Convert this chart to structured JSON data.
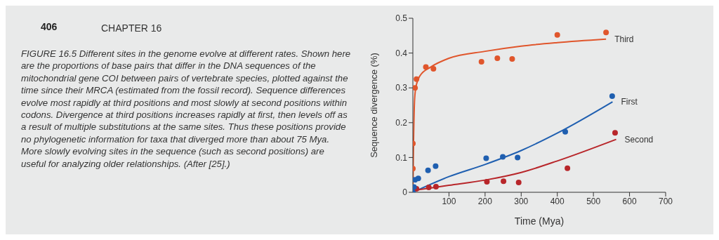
{
  "chart_data": {
    "type": "scatter",
    "xlabel": "Time (Mya)",
    "ylabel": "Sequence divergence (%)",
    "xlim": [
      0,
      700
    ],
    "xticks": [
      100,
      200,
      300,
      400,
      500,
      600,
      700
    ],
    "ylim": [
      0,
      0.5
    ],
    "yticks": [
      0,
      0.1,
      0.2,
      0.3,
      0.4,
      0.5
    ],
    "grid": false,
    "line_style": "solid",
    "annotations": [
      "406",
      "CHAPTER 16",
      "FIGURE 16.5 Different sites in the genome evolve at different rates. Shown here are the proportions of base pairs that differ in the DNA sequences of the mitochondrial gene COI between pairs of vertebrate species, plotted against the time since their MRCA (estimated from the fossil record). Sequence differences evolve most rapidly at third positions and most slowly at second positions within codons. Divergence at third positions increases rapidly at first, then levels off as a result of multiple substitutions at the same sites. Thus these positions provide no phylogenetic information for taxa that diverged more than about 75 Mya. More slowly evolving sites in the sequence (such as second positions) are useful for analyzing older relationships. (After [25].)"
    ],
    "series": [
      {
        "marker": "circle",
        "color": "#e0562c",
        "x": [
          0,
          0,
          6,
          10,
          36,
          57,
          190,
          234,
          275,
          400,
          535
        ],
        "values": [
          0.068,
          0.14,
          0.3,
          0.325,
          0.36,
          0.355,
          0.375,
          0.385,
          0.383,
          0.452,
          0.459
        ]
      },
      {
        "marker": "circle",
        "color": "#b8262a",
        "x": [
          10,
          44,
          64,
          205,
          251,
          293,
          428,
          560
        ],
        "values": [
          0.01,
          0.014,
          0.016,
          0.03,
          0.032,
          0.028,
          0.069,
          0.171
        ]
      },
      {
        "marker": "circle",
        "color": "#1f5fb0",
        "x": [
          0,
          3,
          6,
          15,
          42,
          63,
          203,
          249,
          290,
          422,
          552
        ],
        "values": [
          0,
          0.015,
          0.036,
          0.04,
          0.063,
          0.075,
          0.098,
          0.102,
          0.1,
          0.174,
          0.276
        ]
      },
      {
        "type": "line",
        "marker": "none",
        "name": "Third",
        "color": "#e0562c",
        "x": [
          0,
          2,
          5,
          10,
          20,
          50,
          100,
          200,
          300,
          400,
          535
        ],
        "values": [
          0,
          0.15,
          0.27,
          0.31,
          0.335,
          0.36,
          0.385,
          0.405,
          0.42,
          0.43,
          0.44
        ]
      },
      {
        "type": "line",
        "marker": "none",
        "name": "First",
        "color": "#1f5fb0",
        "x": [
          0,
          100,
          200,
          300,
          400,
          553
        ],
        "values": [
          0,
          0.045,
          0.08,
          0.12,
          0.17,
          0.26
        ]
      },
      {
        "type": "line",
        "marker": "none",
        "name": "Second",
        "color": "#b8262a",
        "x": [
          0,
          100,
          200,
          300,
          400,
          563
        ],
        "values": [
          0.005,
          0.02,
          0.035,
          0.057,
          0.09,
          0.152
        ]
      }
    ]
  }
}
